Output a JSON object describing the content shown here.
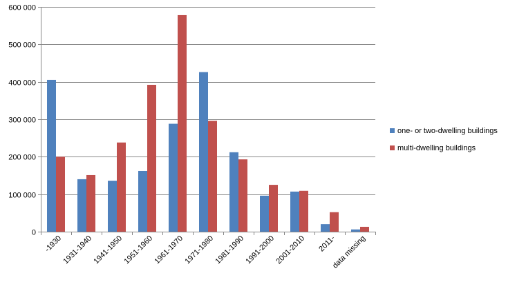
{
  "chart_data": {
    "type": "bar",
    "title": "",
    "xlabel": "",
    "ylabel": "",
    "categories": [
      "-1930",
      "1931-1940",
      "1941-1950",
      "1951-1960",
      "1961-1970",
      "1971-1980",
      "1981-1990",
      "1991-2000",
      "2001-2010",
      "2011-",
      "data missing"
    ],
    "series": [
      {
        "name": "one- or two-dwelling buildings",
        "color": "#4F81BD",
        "values": [
          405000,
          140000,
          136000,
          162000,
          288000,
          426000,
          212000,
          96000,
          107000,
          20000,
          6000
        ]
      },
      {
        "name": "multi-dwelling buildings",
        "color": "#C0504D",
        "values": [
          200000,
          151000,
          238000,
          392000,
          578000,
          296000,
          193000,
          125000,
          109000,
          52000,
          13000
        ]
      }
    ],
    "ylim": [
      0,
      600000
    ],
    "yticks": [
      0,
      100000,
      200000,
      300000,
      400000,
      500000,
      600000
    ],
    "ytick_labels": [
      "0",
      "100 000",
      "200 000",
      "300 000",
      "400 000",
      "500 000",
      "600 000"
    ],
    "grid": true,
    "legend_position": "right"
  }
}
